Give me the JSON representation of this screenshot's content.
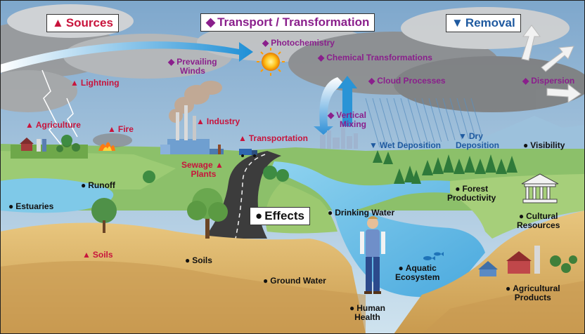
{
  "colors": {
    "sources": "#c8143c",
    "transport": "#8a1f8c",
    "removal": "#1f5aa0",
    "effects": "#111111"
  },
  "headings": {
    "sources": "Sources",
    "transport": "Transport / Transformation",
    "removal": "Removal",
    "effects": "Effects"
  },
  "markers": {
    "sources": "▲",
    "transport": "◆",
    "removal": "▼",
    "effects": "●"
  },
  "sources": {
    "lightning": "Lightning",
    "agriculture": "Agriculture",
    "fire": "Fire",
    "industry": "Industry",
    "transportation": "Transportation",
    "sewage_line1": "Sewage",
    "sewage_line2": "Plants",
    "soils": "Soils"
  },
  "transport": {
    "winds_line1": "Prevailing",
    "winds_line2": "Winds",
    "photochemistry": "Photochemistry",
    "chemical": "Chemical Transformations",
    "cloud": "Cloud Processes",
    "dispersion": "Dispersion",
    "mixing_line1": "Vertical",
    "mixing_line2": "Mixing"
  },
  "removal": {
    "wet": "Wet Deposition",
    "dry_line1": "Dry",
    "dry_line2": "Deposition"
  },
  "effects": {
    "visibility": "Visibility",
    "runoff": "Runoff",
    "estuaries": "Estuaries",
    "drinking_water": "Drinking Water",
    "forest_line1": "Forest",
    "forest_line2": "Productivity",
    "cultural_line1": "Cultural",
    "cultural_line2": "Resources",
    "soils": "Soils",
    "ground_water": "Ground Water",
    "aquatic_line1": "Aquatic",
    "aquatic_line2": "Ecosystem",
    "agricultural_line1": "Agricultural",
    "agricultural_line2": "Products",
    "human_line1": "Human",
    "human_line2": "Health"
  }
}
